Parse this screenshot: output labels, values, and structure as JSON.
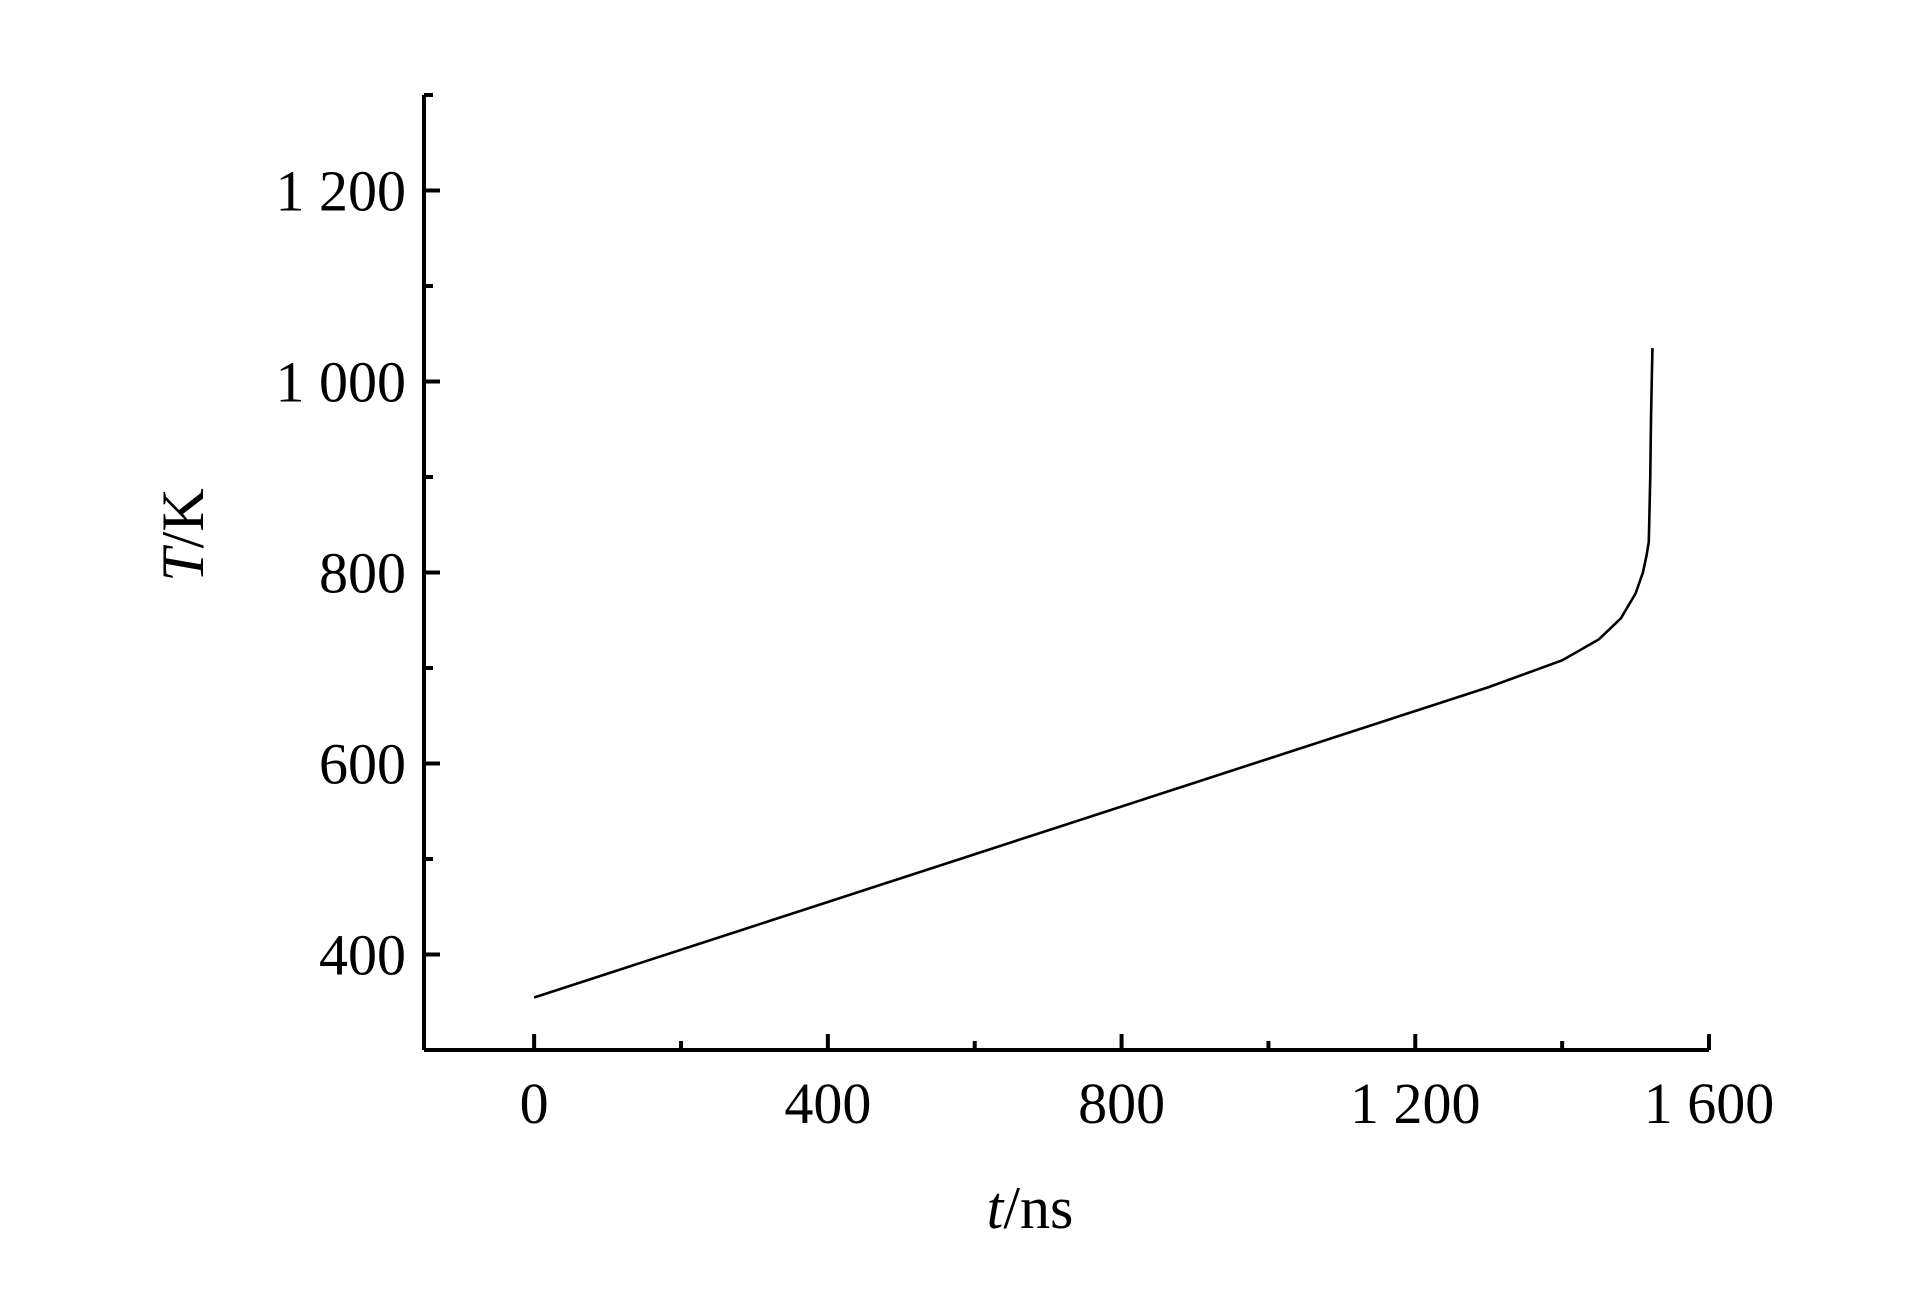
{
  "chart_data": {
    "type": "line",
    "xlabel_var": "t",
    "xlabel_unit": "/ns",
    "ylabel_var": "T",
    "ylabel_unit": "/K",
    "xlim": [
      -150,
      1600
    ],
    "ylim": [
      300,
      1300
    ],
    "x_ticks": [
      {
        "value": 0,
        "label": "0"
      },
      {
        "value": 400,
        "label": "400"
      },
      {
        "value": 800,
        "label": "800"
      },
      {
        "value": 1200,
        "label": "1 200"
      },
      {
        "value": 1600,
        "label": "1 600"
      }
    ],
    "x_minor_ticks": [
      200,
      600,
      1000,
      1400
    ],
    "y_ticks": [
      {
        "value": 400,
        "label": "400"
      },
      {
        "value": 600,
        "label": "600"
      },
      {
        "value": 800,
        "label": "800"
      },
      {
        "value": 1000,
        "label": "1 000"
      },
      {
        "value": 1200,
        "label": "1 200"
      }
    ],
    "y_minor_ticks": [
      300,
      500,
      700,
      900,
      1100,
      1300
    ],
    "grid": false,
    "legend": "none",
    "series": [
      {
        "x": [
          0,
          100,
          200,
          300,
          400,
          500,
          600,
          700,
          800,
          900,
          1000,
          1100,
          1200,
          1300,
          1400,
          1450,
          1480,
          1500,
          1510,
          1515,
          1518,
          1520,
          1521,
          1522,
          1523
        ],
        "y": [
          355,
          380,
          405,
          430,
          455,
          480,
          505,
          530,
          555,
          580,
          605,
          630,
          655,
          680,
          708,
          730,
          752,
          778,
          800,
          818,
          832,
          900,
          960,
          1000,
          1035
        ],
        "color": "#000000"
      }
    ]
  }
}
